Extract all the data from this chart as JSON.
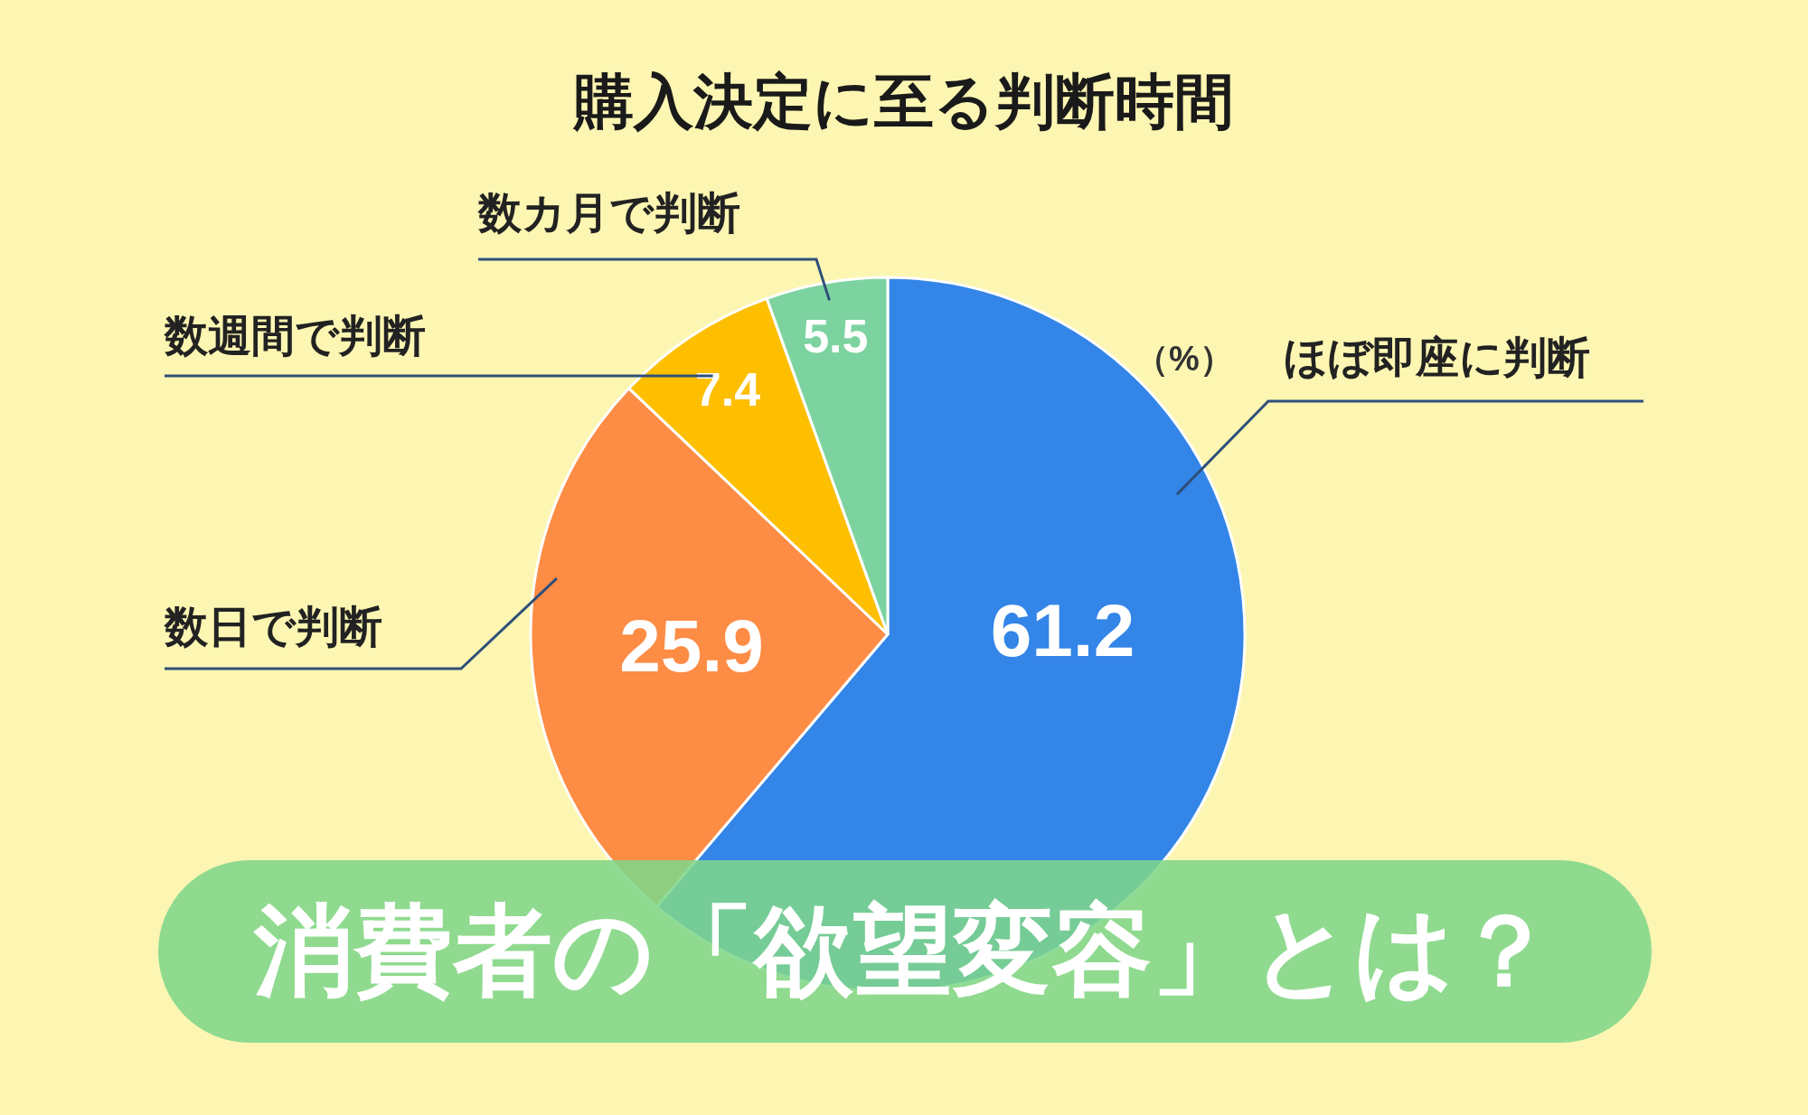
{
  "chart_data": {
    "type": "pie",
    "title": "購入決定に至る判断時間",
    "categories": [
      "ほぼ即座に判断",
      "数日で判断",
      "数週間で判断",
      "数カ月で判断"
    ],
    "values": [
      61.2,
      25.9,
      7.4,
      5.5
    ],
    "colors": [
      "#3385e8",
      "#fd8c45",
      "#fdbf00",
      "#7dd3a0"
    ],
    "data_labels": true,
    "annotations": [
      "（%）",
      "消費者の「欲望変容」とは？"
    ]
  }
}
